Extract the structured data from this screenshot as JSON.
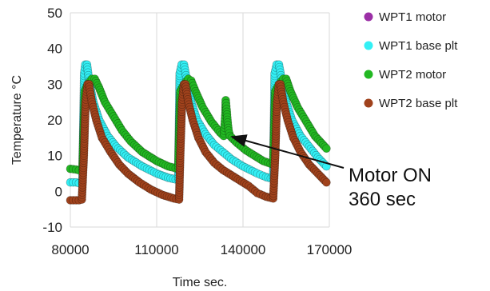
{
  "chart_data": {
    "type": "scatter",
    "xlabel": "Time sec.",
    "ylabel": "Temperature °C",
    "xlim": [
      80000,
      170000
    ],
    "ylim": [
      -10,
      50
    ],
    "xticks": [
      "80000",
      "110000",
      "140000",
      "170000"
    ],
    "yticks": [
      "-10",
      "0",
      "10",
      "20",
      "30",
      "40",
      "50"
    ],
    "grid": "vertical",
    "legend_placement": "right",
    "series": [
      {
        "name": "WPT1 motor",
        "color": "#9b2fa6",
        "points": []
      },
      {
        "name": "WPT1 base plt",
        "color": "#33f0f5",
        "points": [
          [
            80000,
            2.5
          ],
          [
            81000,
            2.5
          ],
          [
            82000,
            2.5
          ],
          [
            83000,
            2.3
          ],
          [
            84200,
            2.3
          ],
          [
            84800,
            33
          ],
          [
            85200,
            35.5
          ],
          [
            85800,
            35.5
          ],
          [
            86500,
            31
          ],
          [
            88000,
            25
          ],
          [
            90000,
            20
          ],
          [
            93000,
            15.5
          ],
          [
            96000,
            12.5
          ],
          [
            100000,
            9.5
          ],
          [
            105000,
            7
          ],
          [
            110000,
            5
          ],
          [
            114000,
            3.8
          ],
          [
            117500,
            3.2
          ],
          [
            118000,
            33
          ],
          [
            118700,
            35.5
          ],
          [
            119500,
            35.5
          ],
          [
            120500,
            31
          ],
          [
            122000,
            25
          ],
          [
            124000,
            20
          ],
          [
            127000,
            16
          ],
          [
            130000,
            13
          ],
          [
            133000,
            11
          ],
          [
            136000,
            9
          ],
          [
            140000,
            7
          ],
          [
            145000,
            5
          ],
          [
            148000,
            4
          ],
          [
            150500,
            3.5
          ],
          [
            151000,
            33
          ],
          [
            151700,
            35.5
          ],
          [
            152500,
            35.5
          ],
          [
            153500,
            31
          ],
          [
            155000,
            25
          ],
          [
            157000,
            20
          ],
          [
            160000,
            15.5
          ],
          [
            163000,
            12.5
          ],
          [
            166000,
            9.5
          ],
          [
            169000,
            7
          ]
        ]
      },
      {
        "name": "WPT2 motor",
        "color": "#22b822",
        "points": [
          [
            80000,
            6.3
          ],
          [
            81000,
            6.2
          ],
          [
            82000,
            6.1
          ],
          [
            83000,
            5.9
          ],
          [
            84200,
            5.8
          ],
          [
            85000,
            28
          ],
          [
            86000,
            30
          ],
          [
            87500,
            31.5
          ],
          [
            88500,
            31.5
          ],
          [
            90000,
            29
          ],
          [
            92000,
            25
          ],
          [
            95000,
            21
          ],
          [
            98000,
            17
          ],
          [
            101000,
            14
          ],
          [
            105000,
            11
          ],
          [
            110000,
            8.5
          ],
          [
            114000,
            7
          ],
          [
            117500,
            6.3
          ],
          [
            118200,
            28
          ],
          [
            119500,
            30
          ],
          [
            121000,
            31.5
          ],
          [
            122000,
            31
          ],
          [
            123500,
            28
          ],
          [
            126000,
            23.5
          ],
          [
            129000,
            19.5
          ],
          [
            132000,
            16.5
          ],
          [
            133300,
            15.5
          ],
          [
            133500,
            17
          ],
          [
            133700,
            19.5
          ],
          [
            133900,
            22
          ],
          [
            134000,
            25.5
          ],
          [
            134300,
            23
          ],
          [
            134600,
            20
          ],
          [
            135000,
            17
          ],
          [
            135500,
            15.5
          ],
          [
            138000,
            13.5
          ],
          [
            141000,
            11.5
          ],
          [
            144000,
            10
          ],
          [
            147000,
            8.5
          ],
          [
            150500,
            7.5
          ],
          [
            151200,
            28
          ],
          [
            152500,
            30
          ],
          [
            154000,
            31.5
          ],
          [
            155000,
            31.5
          ],
          [
            156500,
            28
          ],
          [
            159000,
            23.5
          ],
          [
            162000,
            19.5
          ],
          [
            165000,
            15.5
          ],
          [
            169000,
            12
          ]
        ]
      },
      {
        "name": "WPT2 base plt",
        "color": "#a0421c",
        "points": [
          [
            80000,
            -2.5
          ],
          [
            81000,
            -2.5
          ],
          [
            82000,
            -2.5
          ],
          [
            83000,
            -2.5
          ],
          [
            84000,
            -2.3
          ],
          [
            84700,
            10
          ],
          [
            85300,
            25
          ],
          [
            86000,
            30
          ],
          [
            86500,
            30
          ],
          [
            87500,
            25
          ],
          [
            89000,
            20
          ],
          [
            91000,
            15
          ],
          [
            94000,
            11
          ],
          [
            97000,
            7.5
          ],
          [
            100000,
            5
          ],
          [
            104000,
            2.5
          ],
          [
            108000,
            0.5
          ],
          [
            112000,
            -1
          ],
          [
            116000,
            -2
          ],
          [
            117800,
            -2.3
          ],
          [
            118200,
            10
          ],
          [
            118800,
            25
          ],
          [
            119500,
            30
          ],
          [
            120000,
            30
          ],
          [
            121000,
            25
          ],
          [
            122500,
            20
          ],
          [
            124500,
            15
          ],
          [
            127000,
            11
          ],
          [
            130000,
            8
          ],
          [
            133000,
            6
          ],
          [
            136000,
            4.5
          ],
          [
            139000,
            3
          ],
          [
            142000,
            1.5
          ],
          [
            145000,
            -0.5
          ],
          [
            148000,
            -1.5
          ],
          [
            150500,
            -2
          ],
          [
            151200,
            10
          ],
          [
            151800,
            25
          ],
          [
            152500,
            30
          ],
          [
            153000,
            30
          ],
          [
            154000,
            25
          ],
          [
            155500,
            20
          ],
          [
            157500,
            15
          ],
          [
            160000,
            11
          ],
          [
            163000,
            7.5
          ],
          [
            166000,
            5
          ],
          [
            169000,
            2.5
          ]
        ]
      }
    ],
    "annotations": [
      {
        "lines": [
          "Motor ON",
          "360 sec"
        ],
        "points_to": [
          134500,
          15.5
        ]
      }
    ]
  }
}
